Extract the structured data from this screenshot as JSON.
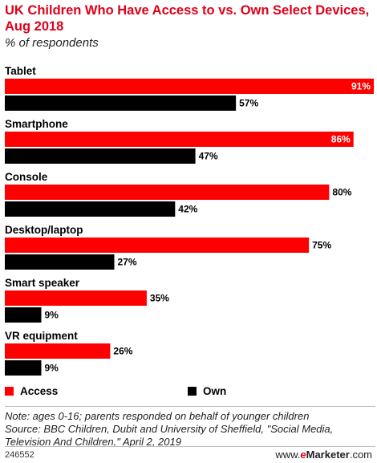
{
  "header": {
    "title": "UK Children Who Have Access to vs. Own Select Devices, Aug 2018",
    "subtitle": "% of respondents"
  },
  "colors": {
    "access": "#ff0000",
    "own": "#000000",
    "accent": "#e0001a"
  },
  "chart_data": {
    "type": "bar",
    "orientation": "horizontal",
    "categories": [
      "Tablet",
      "Smartphone",
      "Console",
      "Desktop/laptop",
      "Smart speaker",
      "VR equipment"
    ],
    "series": [
      {
        "name": "Access",
        "values": [
          91,
          86,
          80,
          75,
          35,
          26
        ]
      },
      {
        "name": "Own",
        "values": [
          57,
          47,
          42,
          27,
          9,
          9
        ]
      }
    ],
    "value_suffix": "%",
    "xlim": [
      0,
      91
    ],
    "grid": false,
    "legend_position": "bottom"
  },
  "legend": {
    "access_label": "Access",
    "own_label": "Own"
  },
  "footnote": {
    "note": "Note: ages 0-16; parents responded on behalf of younger children",
    "source": "Source: BBC Children, Dubit and University of Sheffield, \"Social Media, Television And Children,\" April 2, 2019"
  },
  "footer": {
    "chart_id": "246552",
    "brand_url_prefix": "www.",
    "brand_mark": "e",
    "brand_name": "Marketer",
    "brand_suffix": ".com"
  }
}
